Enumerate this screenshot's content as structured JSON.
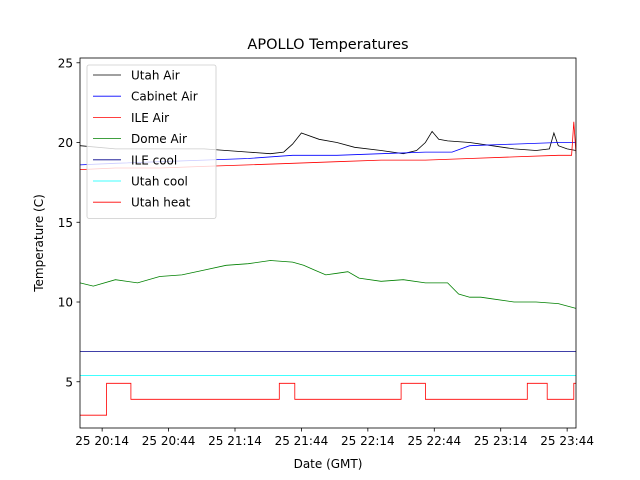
{
  "chart_data": {
    "type": "line",
    "title": "APOLLO Temperatures",
    "xlabel": "Date (GMT)",
    "ylabel": "Temperature (C)",
    "x_unit": "minutes since 25 20:00 GMT",
    "xlim": [
      4,
      228
    ],
    "ylim": [
      2.1,
      25.3
    ],
    "x_ticks": [
      {
        "value": 14,
        "label": "25 20:14"
      },
      {
        "value": 44,
        "label": "25 20:44"
      },
      {
        "value": 74,
        "label": "25 21:14"
      },
      {
        "value": 104,
        "label": "25 21:44"
      },
      {
        "value": 134,
        "label": "25 22:14"
      },
      {
        "value": 164,
        "label": "25 22:44"
      },
      {
        "value": 194,
        "label": "25 23:14"
      },
      {
        "value": 224,
        "label": "25 23:44"
      }
    ],
    "y_ticks": [
      {
        "value": 5,
        "label": "5"
      },
      {
        "value": 10,
        "label": "10"
      },
      {
        "value": 15,
        "label": "15"
      },
      {
        "value": 20,
        "label": "20"
      },
      {
        "value": 25,
        "label": "25"
      }
    ],
    "legend_position": "top-left",
    "series": [
      {
        "name": "Utah Air",
        "color": "#000000",
        "step": false,
        "x": [
          4,
          20,
          40,
          60,
          80,
          90,
          96,
          100,
          104,
          112,
          120,
          128,
          140,
          150,
          156,
          160,
          163,
          166,
          170,
          180,
          190,
          200,
          210,
          216,
          218,
          220,
          224,
          228
        ],
        "y": [
          19.8,
          19.6,
          19.6,
          19.6,
          19.4,
          19.3,
          19.4,
          19.9,
          20.6,
          20.2,
          20.0,
          19.7,
          19.5,
          19.3,
          19.5,
          20.0,
          20.7,
          20.2,
          20.1,
          20.0,
          19.8,
          19.6,
          19.5,
          19.6,
          20.6,
          19.8,
          19.6,
          19.5
        ]
      },
      {
        "name": "Cabinet Air",
        "color": "#0000ff",
        "step": false,
        "x": [
          4,
          20,
          40,
          60,
          80,
          100,
          120,
          140,
          160,
          172,
          180,
          200,
          220,
          228
        ],
        "y": [
          18.6,
          18.7,
          18.8,
          18.9,
          19.0,
          19.2,
          19.2,
          19.3,
          19.4,
          19.4,
          19.8,
          19.9,
          20.0,
          20.0
        ]
      },
      {
        "name": "ILE Air",
        "color": "#ff0000",
        "step": false,
        "x": [
          4,
          20,
          40,
          60,
          80,
          100,
          120,
          140,
          160,
          180,
          200,
          220,
          226,
          227,
          228
        ],
        "y": [
          18.3,
          18.4,
          18.4,
          18.5,
          18.6,
          18.7,
          18.8,
          18.9,
          18.9,
          19.0,
          19.1,
          19.2,
          19.2,
          21.3,
          19.3
        ]
      },
      {
        "name": "Dome Air",
        "color": "#008000",
        "step": false,
        "x": [
          4,
          10,
          20,
          30,
          40,
          50,
          60,
          70,
          80,
          90,
          100,
          105,
          110,
          115,
          120,
          125,
          130,
          140,
          150,
          160,
          170,
          175,
          180,
          185,
          190,
          200,
          210,
          220,
          228
        ],
        "y": [
          11.2,
          11.0,
          11.4,
          11.2,
          11.6,
          11.7,
          12.0,
          12.3,
          12.4,
          12.6,
          12.5,
          12.3,
          12.0,
          11.7,
          11.8,
          11.9,
          11.5,
          11.3,
          11.4,
          11.2,
          11.2,
          10.5,
          10.3,
          10.3,
          10.2,
          10.0,
          10.0,
          9.9,
          9.6
        ]
      },
      {
        "name": "ILE cool",
        "color": "#00008b",
        "step": false,
        "x": [
          4,
          228
        ],
        "y": [
          6.9,
          6.9
        ]
      },
      {
        "name": "Utah cool",
        "color": "#00ffff",
        "step": false,
        "x": [
          4,
          228
        ],
        "y": [
          5.4,
          5.4
        ]
      },
      {
        "name": "Utah heat",
        "color": "#ff0000",
        "step": true,
        "x": [
          4,
          16,
          16,
          27,
          27,
          94,
          94,
          101,
          101,
          149,
          149,
          160,
          160,
          206,
          206,
          215,
          215,
          227,
          227,
          228
        ],
        "y": [
          2.9,
          2.9,
          4.9,
          4.9,
          3.9,
          3.9,
          4.9,
          4.9,
          3.9,
          3.9,
          4.9,
          4.9,
          3.9,
          3.9,
          4.9,
          4.9,
          3.9,
          3.9,
          4.9,
          4.9
        ]
      }
    ]
  }
}
